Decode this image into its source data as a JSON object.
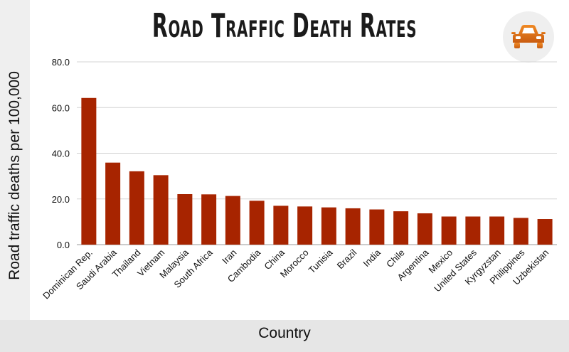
{
  "chart_data": {
    "type": "bar",
    "title": "Road Traffic Death Rates",
    "xlabel": "Country",
    "ylabel": "Road traffic deaths per 100,000",
    "ylim": [
      0,
      80
    ],
    "yticks": [
      "0.0",
      "20.0",
      "40.0",
      "60.0",
      "80.0"
    ],
    "grid": true,
    "categories": [
      "Dominican Rep.",
      "Saudi Arabia",
      "Thailand",
      "Vietnam",
      "Malaysia",
      "South Africa",
      "Iran",
      "Cambodia",
      "China",
      "Morocco",
      "Tunisia",
      "Brazil",
      "India",
      "Chile",
      "Argentina",
      "Mexico",
      "United States",
      "Kyrgyzstan",
      "Philippines",
      "Uzbekistan"
    ],
    "values": [
      64.2,
      35.9,
      32.1,
      30.4,
      22.1,
      22.0,
      21.3,
      19.2,
      17.0,
      16.7,
      16.3,
      15.9,
      15.4,
      14.6,
      13.7,
      12.3,
      12.3,
      12.3,
      11.7,
      11.2
    ],
    "bar_color": "#a72400",
    "icon": "car-icon"
  }
}
